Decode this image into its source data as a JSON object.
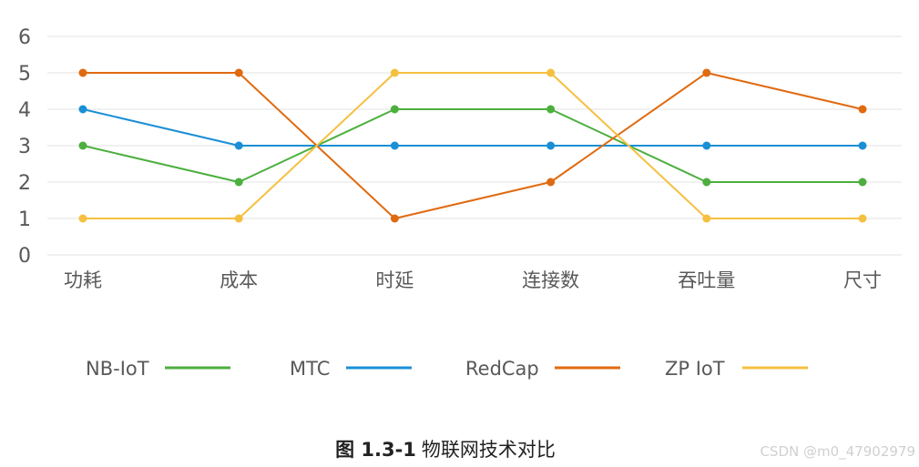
{
  "chart_data": {
    "type": "line",
    "categories": [
      "功耗",
      "成本",
      "时延",
      "连接数",
      "吞吐量",
      "尺寸"
    ],
    "ylim": [
      0,
      6
    ],
    "yticks": [
      "0",
      "1",
      "2",
      "3",
      "4",
      "5",
      "6"
    ],
    "grid": true,
    "legend_position": "bottom",
    "series": [
      {
        "name": "NB-IoT",
        "color": "#4caf3e",
        "values": [
          3,
          2,
          4,
          4,
          2,
          2
        ]
      },
      {
        "name": "MTC",
        "color": "#1a8fd6",
        "values": [
          4,
          3,
          3,
          3,
          3,
          3
        ]
      },
      {
        "name": "RedCap",
        "color": "#e06a10",
        "values": [
          5,
          5,
          1,
          2,
          5,
          4
        ]
      },
      {
        "name": "ZP IoT",
        "color": "#f5c040",
        "values": [
          1,
          1,
          5,
          5,
          1,
          1
        ]
      }
    ]
  },
  "caption": {
    "bold": "图 1.3-1",
    "text": "物联网技术对比"
  },
  "watermark": "CSDN @m0_47902979"
}
